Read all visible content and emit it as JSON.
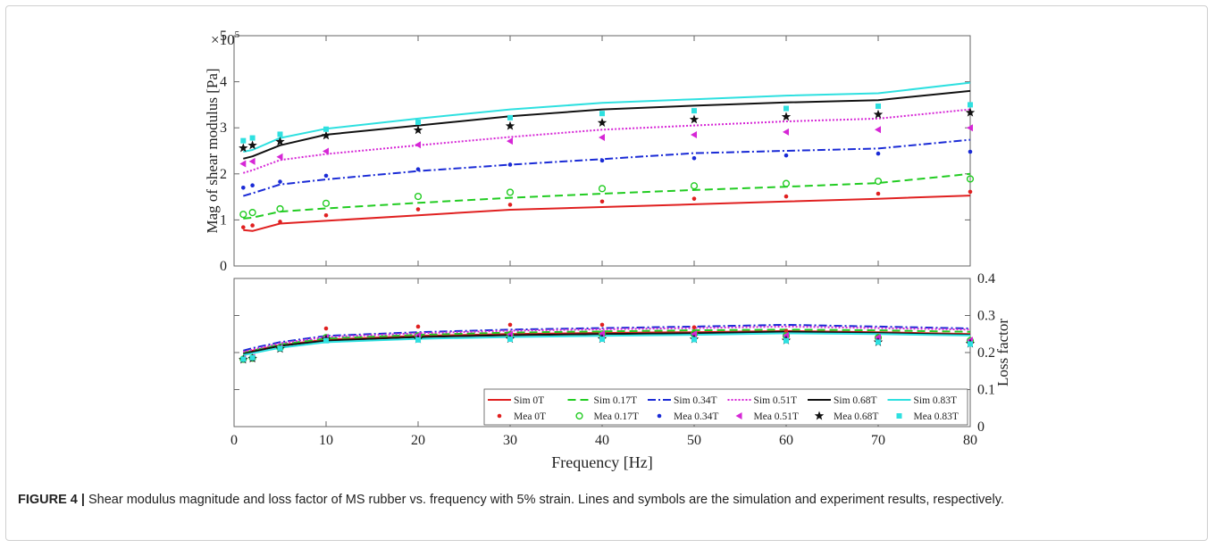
{
  "caption": {
    "label": "FIGURE 4 |",
    "text": "Shear modulus magnitude and loss factor of MS rubber vs. frequency with 5% strain. Lines and symbols are the simulation and experiment results, respectively."
  },
  "chart_data": [
    {
      "type": "line",
      "panel": "top",
      "ylabel": "Mag of shear modulus [Pa]",
      "yscale_label_base": "×10",
      "yscale_label_exp": "5",
      "xlim": [
        0,
        80
      ],
      "ylim": [
        0,
        5
      ],
      "yticks": [
        0,
        1,
        2,
        3,
        4,
        5
      ],
      "x": [
        1,
        2,
        5,
        10,
        20,
        30,
        40,
        50,
        60,
        70,
        80
      ],
      "series": [
        {
          "name": "Sim 0T",
          "kind": "line",
          "color": "#e02020",
          "dash": "",
          "values": [
            0.78,
            0.76,
            0.92,
            0.98,
            1.1,
            1.22,
            1.28,
            1.34,
            1.4,
            1.46,
            1.53
          ]
        },
        {
          "name": "Sim 0.17T",
          "kind": "line",
          "color": "#22cc22",
          "dash": "9,5",
          "values": [
            1.03,
            1.05,
            1.18,
            1.25,
            1.37,
            1.48,
            1.57,
            1.65,
            1.72,
            1.8,
            2.0
          ]
        },
        {
          "name": "Sim 0.34T",
          "kind": "line",
          "color": "#1a2bd6",
          "dash": "9,3,2,3",
          "values": [
            1.52,
            1.58,
            1.77,
            1.88,
            2.06,
            2.2,
            2.32,
            2.45,
            2.5,
            2.55,
            2.74
          ]
        },
        {
          "name": "Sim 0.51T",
          "kind": "line",
          "color": "#d626d6",
          "dash": "2,2",
          "values": [
            2.02,
            2.08,
            2.3,
            2.43,
            2.62,
            2.8,
            2.96,
            3.05,
            3.14,
            3.2,
            3.4
          ]
        },
        {
          "name": "Sim 0.68T",
          "kind": "line",
          "color": "#111111",
          "dash": "",
          "values": [
            2.33,
            2.38,
            2.62,
            2.85,
            3.05,
            3.25,
            3.4,
            3.48,
            3.55,
            3.6,
            3.8
          ]
        },
        {
          "name": "Sim 0.83T",
          "kind": "line",
          "color": "#2ee0e0",
          "dash": "",
          "values": [
            2.48,
            2.52,
            2.78,
            2.98,
            3.2,
            3.4,
            3.54,
            3.62,
            3.7,
            3.75,
            3.98
          ]
        },
        {
          "name": "Mea 0T",
          "kind": "marker",
          "marker": "dot",
          "color": "#e02020",
          "values": [
            0.84,
            0.88,
            0.96,
            1.1,
            1.23,
            1.33,
            1.4,
            1.46,
            1.51,
            1.57,
            1.61
          ]
        },
        {
          "name": "Mea 0.17T",
          "kind": "marker",
          "marker": "circle",
          "color": "#22cc22",
          "values": [
            1.12,
            1.16,
            1.24,
            1.36,
            1.51,
            1.6,
            1.68,
            1.74,
            1.79,
            1.84,
            1.89
          ]
        },
        {
          "name": "Mea 0.34T",
          "kind": "marker",
          "marker": "dot",
          "color": "#1a2bd6",
          "values": [
            1.7,
            1.75,
            1.83,
            1.96,
            2.1,
            2.2,
            2.29,
            2.34,
            2.4,
            2.44,
            2.48
          ]
        },
        {
          "name": "Mea 0.51T",
          "kind": "marker",
          "marker": "triangle",
          "color": "#d626d6",
          "values": [
            2.22,
            2.27,
            2.37,
            2.49,
            2.63,
            2.71,
            2.79,
            2.85,
            2.91,
            2.96,
            3.0
          ]
        },
        {
          "name": "Mea 0.68T",
          "kind": "marker",
          "marker": "star",
          "color": "#111111",
          "values": [
            2.56,
            2.62,
            2.7,
            2.83,
            2.95,
            3.04,
            3.11,
            3.18,
            3.24,
            3.29,
            3.33
          ]
        },
        {
          "name": "Mea 0.83T",
          "kind": "marker",
          "marker": "square",
          "color": "#2ee0e0",
          "values": [
            2.72,
            2.78,
            2.86,
            2.97,
            3.12,
            3.22,
            3.31,
            3.37,
            3.42,
            3.47,
            3.5
          ]
        }
      ]
    },
    {
      "type": "line",
      "panel": "bottom",
      "xlabel": "Frequency [Hz]",
      "ylabel": "Loss factor",
      "xlim": [
        0,
        80
      ],
      "xticks": [
        0,
        10,
        20,
        30,
        40,
        50,
        60,
        70,
        80
      ],
      "ylim": [
        0,
        0.4
      ],
      "yticks": [
        0,
        0.1,
        0.2,
        0.3,
        0.4
      ],
      "legend_position": "bottom-right",
      "x": [
        1,
        2,
        5,
        10,
        20,
        30,
        40,
        50,
        60,
        70,
        80
      ],
      "series": [
        {
          "name": "Sim 0T",
          "kind": "line",
          "color": "#e02020",
          "dash": "",
          "values": [
            0.2,
            0.205,
            0.22,
            0.235,
            0.245,
            0.25,
            0.253,
            0.255,
            0.258,
            0.255,
            0.25
          ]
        },
        {
          "name": "Sim 0.17T",
          "kind": "line",
          "color": "#22cc22",
          "dash": "9,5",
          "values": [
            0.198,
            0.205,
            0.222,
            0.238,
            0.248,
            0.254,
            0.257,
            0.26,
            0.262,
            0.26,
            0.256
          ]
        },
        {
          "name": "Sim 0.34T",
          "kind": "line",
          "color": "#1a2bd6",
          "dash": "9,3,2,3",
          "values": [
            0.205,
            0.212,
            0.228,
            0.245,
            0.255,
            0.262,
            0.266,
            0.27,
            0.275,
            0.27,
            0.265
          ]
        },
        {
          "name": "Sim 0.51T",
          "kind": "line",
          "color": "#d626d6",
          "dash": "2,2",
          "values": [
            0.202,
            0.208,
            0.225,
            0.242,
            0.252,
            0.259,
            0.263,
            0.266,
            0.27,
            0.266,
            0.262
          ]
        },
        {
          "name": "Sim 0.68T",
          "kind": "line",
          "color": "#111111",
          "dash": "",
          "values": [
            0.196,
            0.202,
            0.218,
            0.232,
            0.242,
            0.247,
            0.25,
            0.252,
            0.256,
            0.253,
            0.248
          ]
        },
        {
          "name": "Sim 0.83T",
          "kind": "line",
          "color": "#2ee0e0",
          "dash": "",
          "values": [
            0.193,
            0.198,
            0.213,
            0.228,
            0.237,
            0.242,
            0.245,
            0.248,
            0.252,
            0.25,
            0.246
          ]
        },
        {
          "name": "Mea 0T",
          "kind": "marker",
          "marker": "dot",
          "color": "#e02020",
          "values": [
            0.185,
            0.19,
            0.215,
            0.265,
            0.27,
            0.275,
            0.275,
            0.268,
            0.258,
            0.245,
            0.232
          ]
        },
        {
          "name": "Mea 0.17T",
          "kind": "marker",
          "marker": "circle",
          "color": "#22cc22",
          "values": [
            0.182,
            0.185,
            0.212,
            0.24,
            0.245,
            0.248,
            0.25,
            0.25,
            0.245,
            0.24,
            0.232
          ]
        },
        {
          "name": "Mea 0.34T",
          "kind": "marker",
          "marker": "dot",
          "color": "#1a2bd6",
          "values": [
            0.18,
            0.184,
            0.21,
            0.238,
            0.243,
            0.246,
            0.248,
            0.248,
            0.243,
            0.238,
            0.23
          ]
        },
        {
          "name": "Mea 0.51T",
          "kind": "marker",
          "marker": "triangle",
          "color": "#d626d6",
          "values": [
            0.183,
            0.187,
            0.213,
            0.241,
            0.246,
            0.249,
            0.251,
            0.25,
            0.246,
            0.241,
            0.233
          ]
        },
        {
          "name": "Mea 0.68T",
          "kind": "marker",
          "marker": "star",
          "color": "#111111",
          "values": [
            0.181,
            0.184,
            0.21,
            0.236,
            0.236,
            0.237,
            0.237,
            0.236,
            0.233,
            0.228,
            0.224
          ]
        },
        {
          "name": "Mea 0.83T",
          "kind": "marker",
          "marker": "square",
          "color": "#2ee0e0",
          "values": [
            0.182,
            0.186,
            0.211,
            0.232,
            0.234,
            0.236,
            0.236,
            0.235,
            0.232,
            0.228,
            0.223
          ]
        }
      ]
    }
  ]
}
